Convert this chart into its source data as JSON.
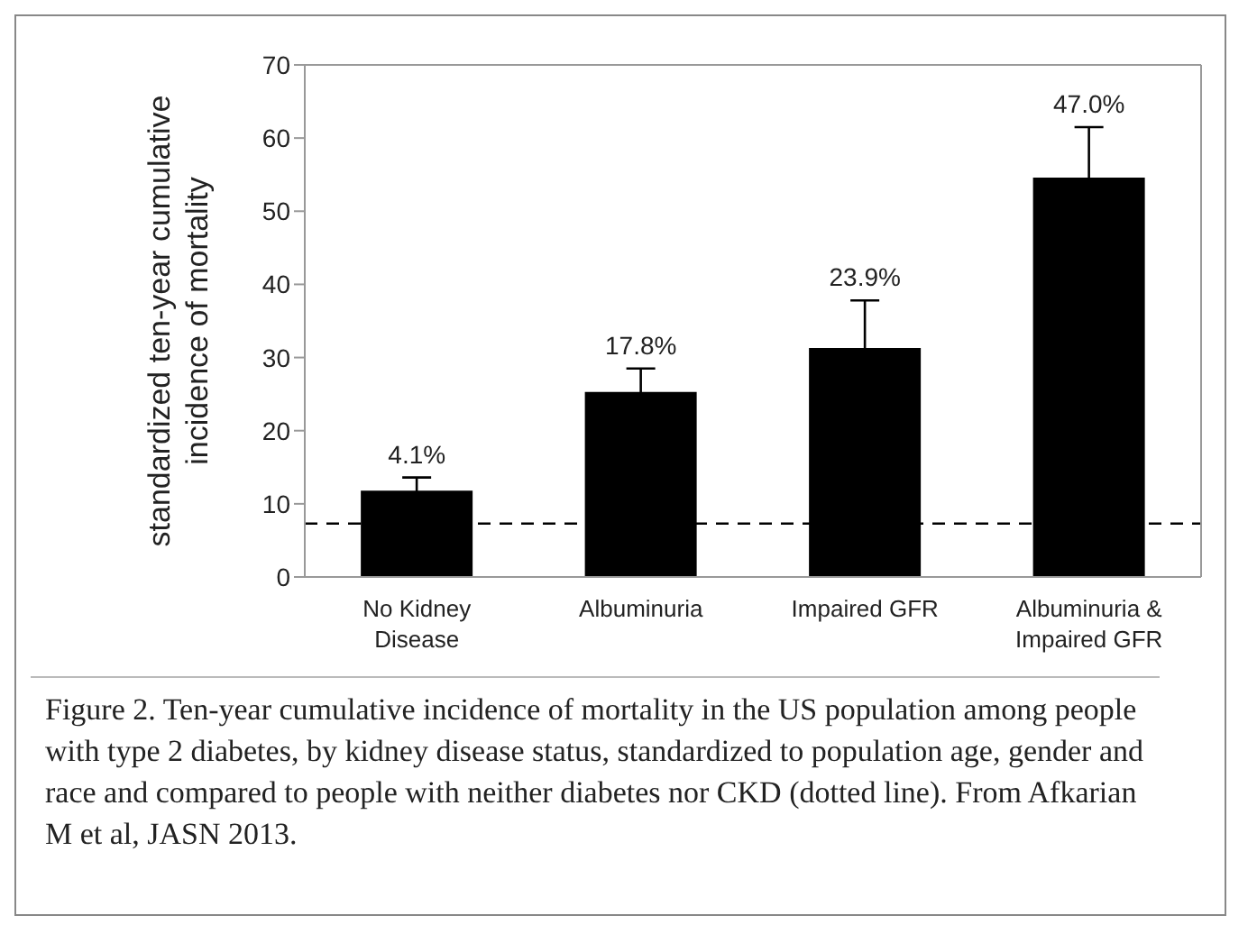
{
  "chart_data": {
    "type": "bar",
    "ylabel": "standardized ten-year cumulative\nincidence of mortality",
    "categories": [
      "No Kidney Disease",
      "Albuminuria",
      "Impaired GFR",
      "Albuminuria & Impaired GFR"
    ],
    "values": [
      11.8,
      25.3,
      31.3,
      54.6
    ],
    "color": "#000000",
    "errors": [
      1.8,
      3.2,
      6.5,
      6.9
    ],
    "ylim": [
      0,
      70
    ],
    "yticks": [
      0,
      10,
      20,
      30,
      40,
      50,
      60,
      70
    ],
    "grid": false,
    "legend": false,
    "ref_lines": [
      {
        "axis": "y",
        "value": 7.3,
        "line_style": "dashed",
        "color": "#000000"
      }
    ],
    "annotations": [
      {
        "text": "4.1%",
        "x": "No Kidney Disease",
        "y": 13.6
      },
      {
        "text": "17.8%",
        "x": "Albuminuria",
        "y": 28.5
      },
      {
        "text": "23.9%",
        "x": "Impaired GFR",
        "y": 37.8
      },
      {
        "text": "47.0%",
        "x": "Albuminuria & Impaired GFR",
        "y": 61.5
      },
      "Figure 2. Ten-year cumulative incidence of mortality in the US population among people with type 2 diabetes, by kidney disease status, standardized to population age, gender and race and compared to people with neither diabetes nor CKD (dotted line). From Afkarian M et al, JASN 2013."
    ]
  }
}
